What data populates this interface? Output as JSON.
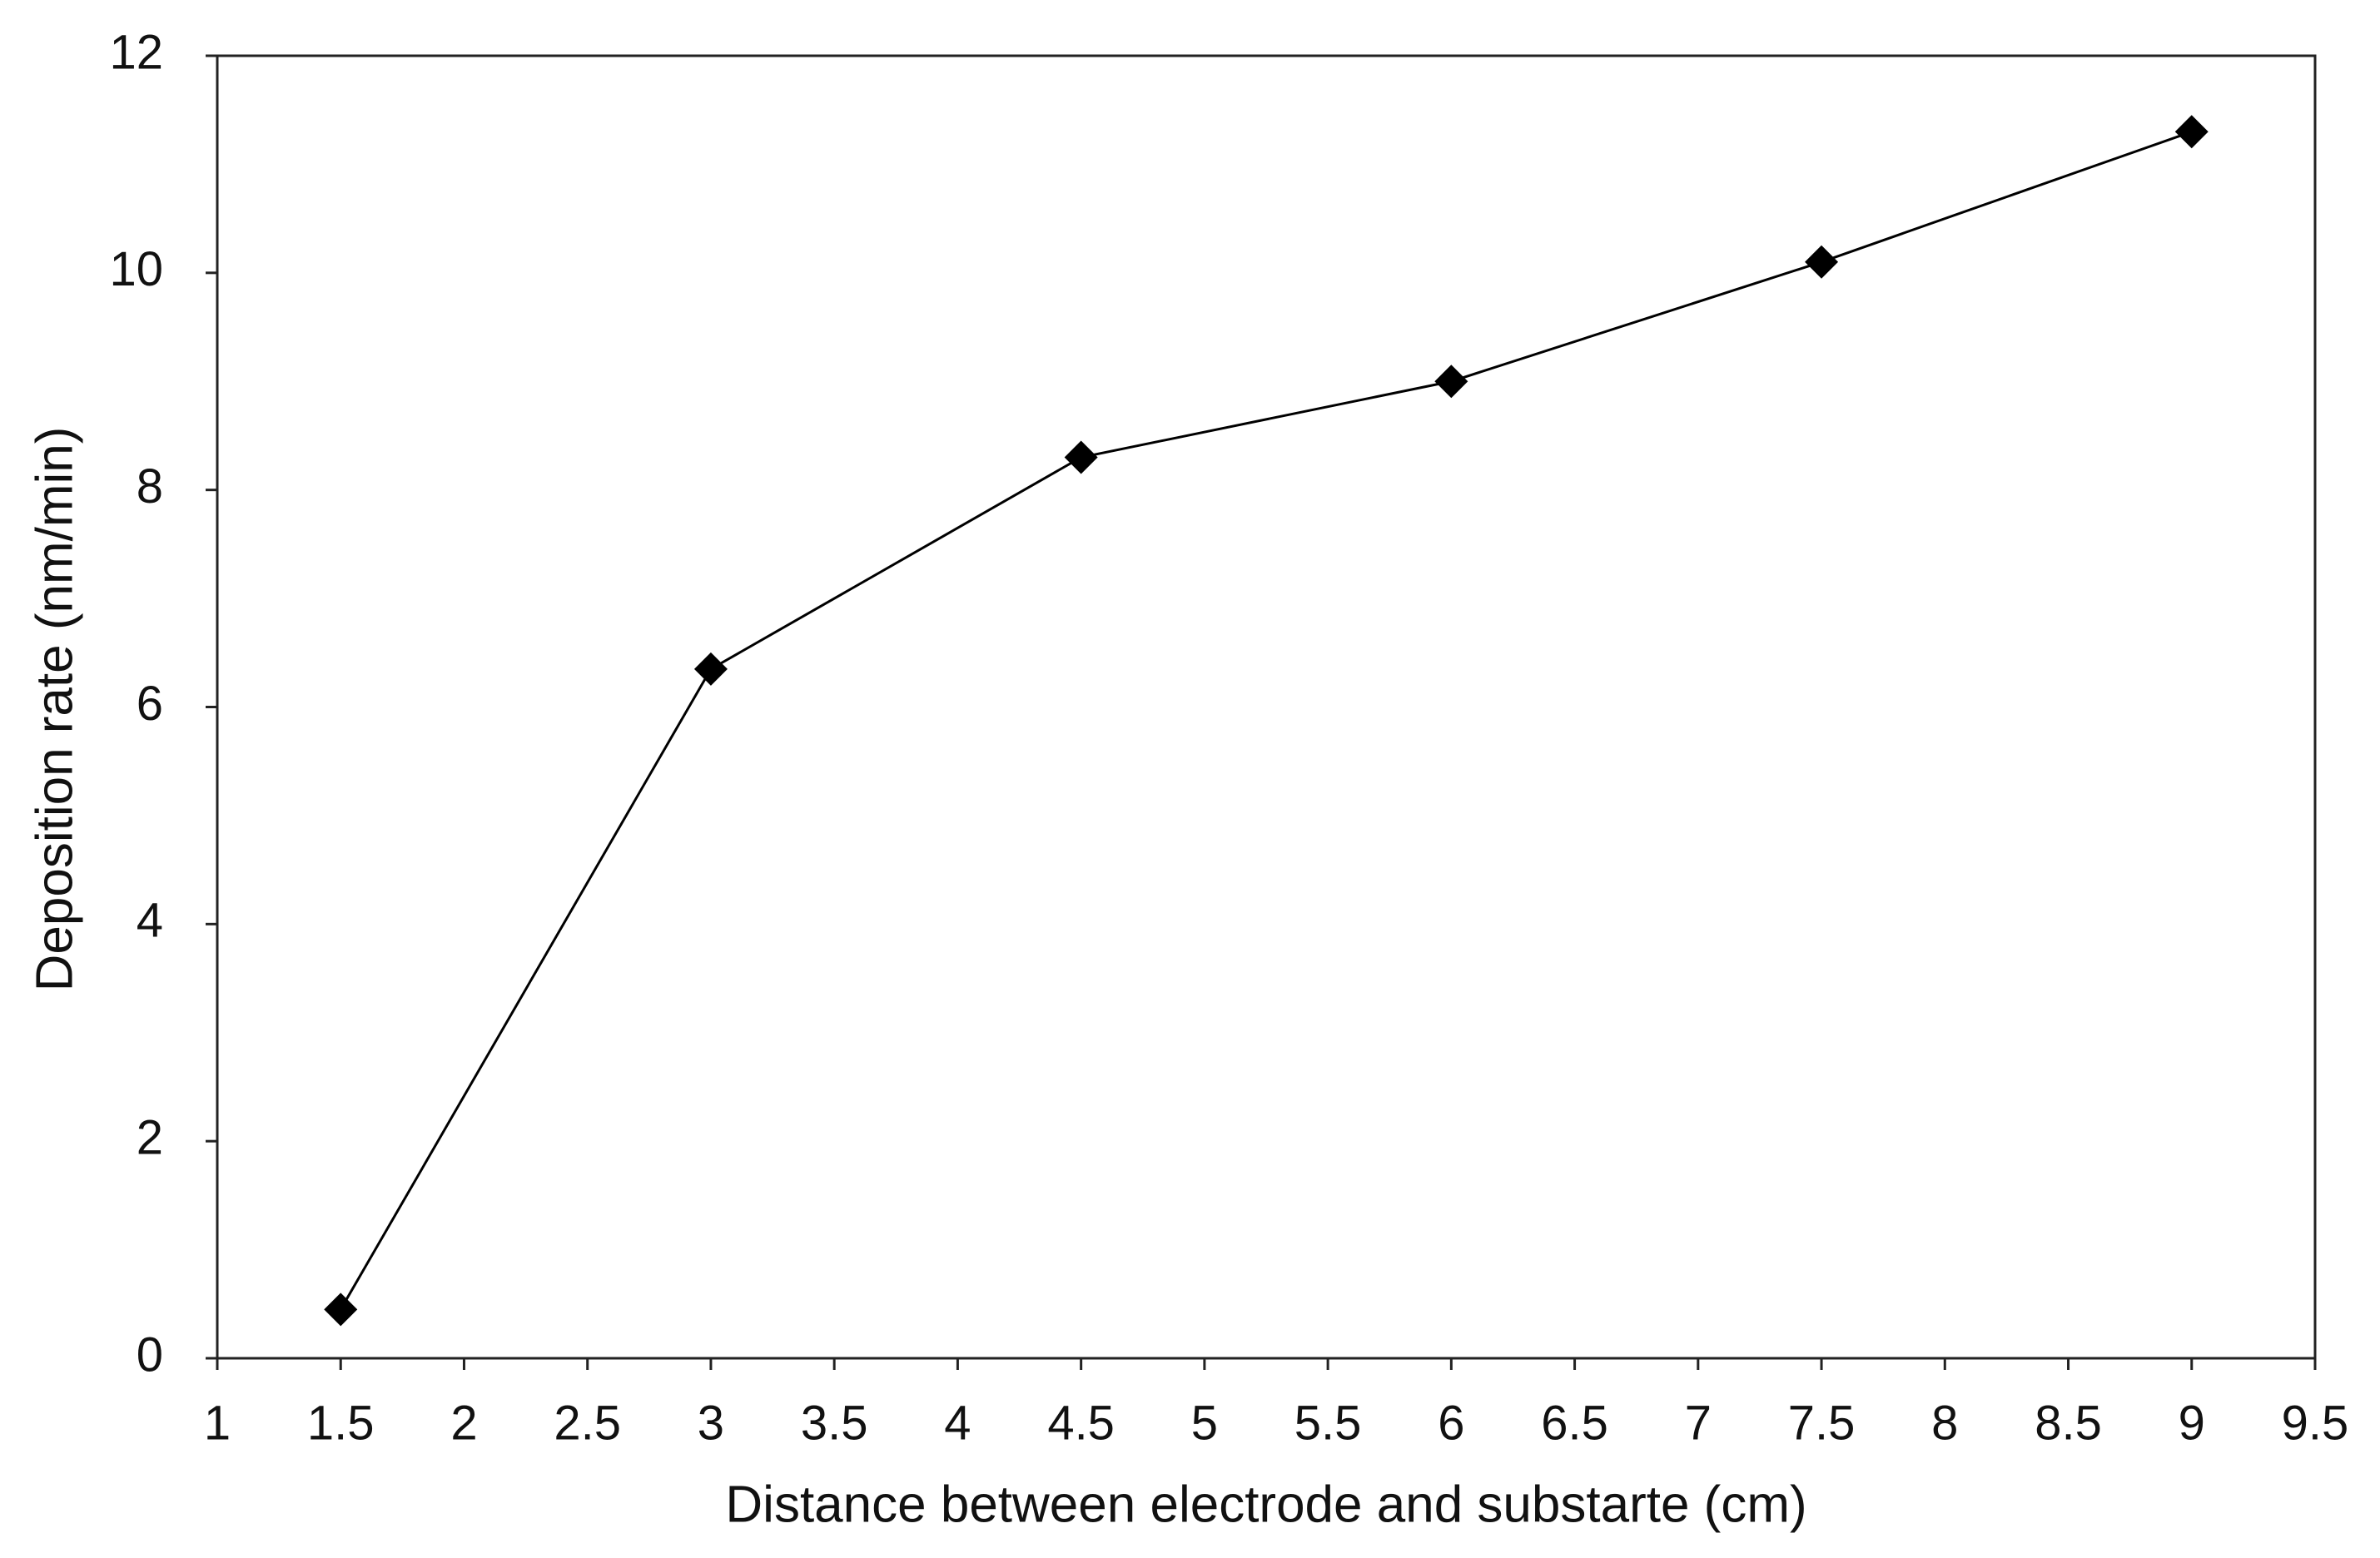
{
  "chart_data": {
    "type": "line",
    "xlabel": "Distance between electrode and substarte (cm)",
    "ylabel": "Deposition rate (nm/min)",
    "x": [
      1.5,
      3,
      4.5,
      6,
      7.5,
      9
    ],
    "values": [
      0.45,
      6.35,
      8.3,
      9.0,
      10.1,
      11.3
    ],
    "color": "#000000",
    "marker": "diamond",
    "xlim": [
      1,
      9.5
    ],
    "xticks": [
      1,
      1.5,
      2,
      2.5,
      3,
      3.5,
      4,
      4.5,
      5,
      5.5,
      6,
      6.5,
      7,
      7.5,
      8,
      8.5,
      9,
      9.5
    ],
    "ylim": [
      0,
      12
    ],
    "yticks": [
      0,
      2,
      4,
      6,
      8,
      10,
      12
    ],
    "grid": false
  }
}
